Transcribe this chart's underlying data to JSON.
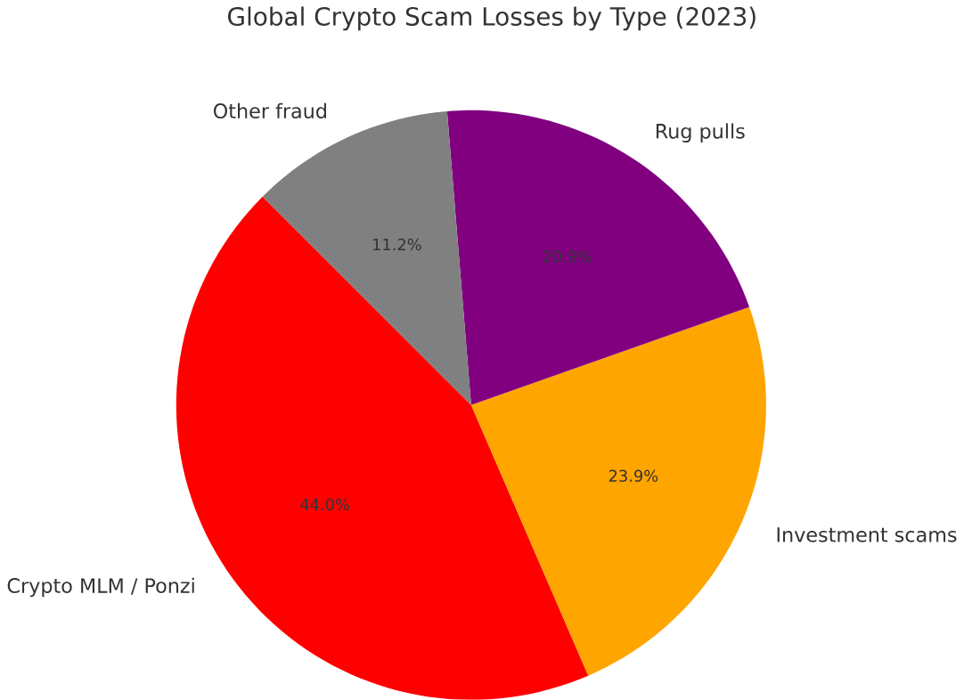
{
  "chart_data": {
    "type": "pie",
    "title": "Global Crypto Scam Losses by Type (2023)",
    "categories": [
      "Crypto MLM / Ponzi",
      "Investment scams",
      "Rug pulls",
      "Other fraud"
    ],
    "values": [
      44.0,
      23.9,
      20.9,
      11.2
    ],
    "colors": [
      "#ff0000",
      "#ffa500",
      "#800080",
      "#808080"
    ],
    "value_labels": [
      "44.0%",
      "23.9%",
      "20.9%",
      "11.2%"
    ]
  }
}
